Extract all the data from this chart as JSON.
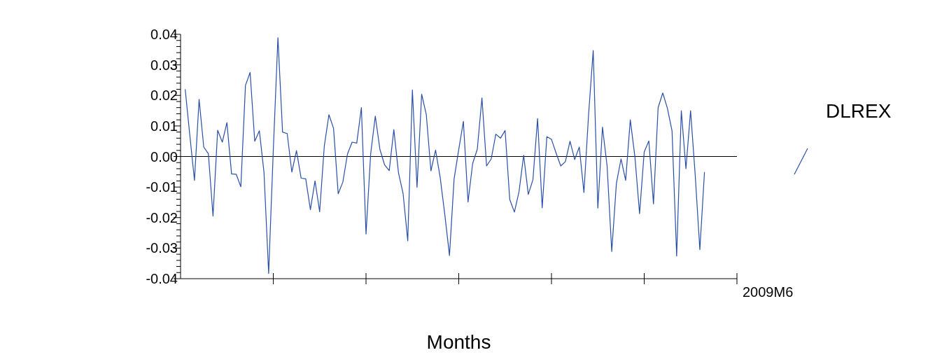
{
  "chart_data": {
    "type": "line",
    "xlabel": "Months",
    "categories": [
      null,
      null,
      null,
      null,
      null,
      null,
      null,
      null,
      null,
      null,
      null,
      null,
      null,
      null,
      null,
      null,
      null,
      null,
      null,
      null,
      null,
      null,
      null,
      null,
      null,
      null,
      null,
      null,
      null,
      null,
      null,
      null,
      null,
      null,
      null,
      null,
      null,
      null,
      null,
      null,
      null,
      null,
      null,
      null,
      null,
      null,
      null,
      null,
      null,
      null,
      null,
      null,
      null,
      null,
      null,
      null,
      null,
      null,
      null,
      null,
      null,
      null,
      null,
      null,
      null,
      null,
      null,
      null,
      null,
      null,
      null,
      null,
      null,
      null,
      null,
      null,
      null,
      null,
      null,
      null,
      null,
      null,
      null,
      null,
      null,
      null,
      null,
      null,
      null,
      null,
      null,
      null,
      null,
      null,
      null,
      null,
      null,
      null,
      null,
      null,
      null,
      null,
      null,
      null,
      null,
      null,
      null,
      null,
      null,
      null,
      null,
      null,
      null
    ],
    "annotations": [
      "2009M6"
    ],
    "series": [
      {
        "name": "DLREX",
        "color": "#2a4fa8",
        "values": [
          0.022,
          0.0069,
          -0.0078,
          0.0187,
          0.0031,
          0.0009,
          -0.0195,
          0.0086,
          0.0047,
          0.0111,
          -0.0057,
          -0.0058,
          -0.0099,
          0.0233,
          0.0275,
          0.005,
          0.0084,
          -0.0053,
          -0.0383,
          0.002,
          0.0389,
          0.008,
          0.0075,
          -0.0051,
          0.0019,
          -0.0071,
          -0.0073,
          -0.0174,
          -0.008,
          -0.0181,
          0.0034,
          0.0137,
          0.0092,
          -0.0122,
          -0.0084,
          0.0008,
          0.0047,
          0.0044,
          0.016,
          -0.0254,
          0.0008,
          0.0132,
          0.0023,
          -0.0027,
          -0.0046,
          0.0088,
          -0.0053,
          -0.0122,
          -0.0276,
          0.0218,
          -0.0101,
          0.0204,
          0.0137,
          -0.0047,
          0.0021,
          -0.0069,
          -0.0191,
          -0.0324,
          -0.0073,
          0.0023,
          0.0115,
          -0.0149,
          -0.0023,
          0.0024,
          0.0192,
          -0.0031,
          -0.0008,
          0.0073,
          0.006,
          0.0085,
          -0.0141,
          -0.0182,
          -0.0115,
          0.0004,
          -0.0124,
          -0.0076,
          0.0124,
          -0.0168,
          0.0065,
          0.0056,
          0.0011,
          -0.0031,
          -0.0017,
          0.005,
          -0.001,
          0.0031,
          -0.0118,
          0.0137,
          0.0347,
          -0.0169,
          0.0096,
          -0.0032,
          -0.0311,
          -0.0088,
          -0.0008,
          -0.0078,
          0.012,
          -0.0002,
          -0.0187,
          0.0015,
          0.0051,
          -0.0155,
          0.016,
          0.0208,
          0.0158,
          0.0084,
          -0.0326,
          0.015,
          -0.004,
          0.015,
          -0.0061,
          -0.0305,
          -0.0051
        ]
      }
    ],
    "ylim": [
      -0.04,
      0.04
    ],
    "yticks": [
      {
        "value": -0.04,
        "label": "-0.04"
      },
      {
        "value": -0.038,
        "label": null
      },
      {
        "value": -0.036,
        "label": null
      },
      {
        "value": -0.034,
        "label": null
      },
      {
        "value": -0.032,
        "label": null
      },
      {
        "value": -0.03,
        "label": "-0.03"
      },
      {
        "value": -0.028,
        "label": null
      },
      {
        "value": -0.026,
        "label": null
      },
      {
        "value": -0.024,
        "label": null
      },
      {
        "value": -0.022,
        "label": null
      },
      {
        "value": -0.02,
        "label": "-0.02"
      },
      {
        "value": -0.018,
        "label": null
      },
      {
        "value": -0.016,
        "label": null
      },
      {
        "value": -0.014,
        "label": null
      },
      {
        "value": -0.012,
        "label": null
      },
      {
        "value": -0.01,
        "label": "-0.01"
      },
      {
        "value": -0.008,
        "label": null
      },
      {
        "value": -0.006,
        "label": null
      },
      {
        "value": -0.004,
        "label": null
      },
      {
        "value": -0.002,
        "label": null
      },
      {
        "value": 0,
        "label": "0.00"
      },
      {
        "value": 0.002,
        "label": null
      },
      {
        "value": 0.004,
        "label": null
      },
      {
        "value": 0.006,
        "label": null
      },
      {
        "value": 0.008,
        "label": null
      },
      {
        "value": 0.01,
        "label": "0.01"
      },
      {
        "value": 0.012,
        "label": null
      },
      {
        "value": 0.014,
        "label": null
      },
      {
        "value": 0.016,
        "label": null
      },
      {
        "value": 0.018,
        "label": null
      },
      {
        "value": 0.02,
        "label": "0.02"
      },
      {
        "value": 0.022,
        "label": null
      },
      {
        "value": 0.024,
        "label": null
      },
      {
        "value": 0.026,
        "label": null
      },
      {
        "value": 0.028,
        "label": null
      },
      {
        "value": 0.03,
        "label": "0.03"
      },
      {
        "value": 0.032,
        "label": null
      },
      {
        "value": 0.034,
        "label": null
      },
      {
        "value": 0.036,
        "label": null
      },
      {
        "value": 0.038,
        "label": null
      },
      {
        "value": 0.04,
        "label": "0.04"
      }
    ],
    "ref_lines": [
      {
        "axis": "y",
        "value": 0,
        "color": "#000000"
      }
    ],
    "legend": "right"
  }
}
